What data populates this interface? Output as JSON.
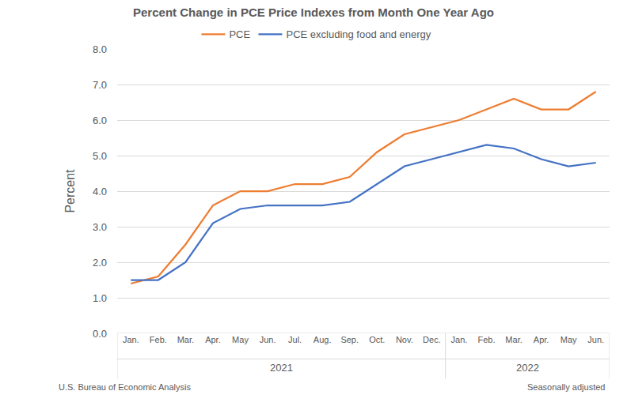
{
  "chart_data": {
    "type": "line",
    "title": "Percent Change in PCE Price Indexes from Month One Year Ago",
    "y_label": "Percent",
    "categories": [
      {
        "month": "Jan.",
        "year": "2021"
      },
      {
        "month": "Feb.",
        "year": "2021"
      },
      {
        "month": "Mar.",
        "year": "2021"
      },
      {
        "month": "Apr.",
        "year": "2021"
      },
      {
        "month": "May",
        "year": "2021"
      },
      {
        "month": "Jun.",
        "year": "2021"
      },
      {
        "month": "Jul.",
        "year": "2021"
      },
      {
        "month": "Aug.",
        "year": "2021"
      },
      {
        "month": "Sep.",
        "year": "2021"
      },
      {
        "month": "Oct.",
        "year": "2021"
      },
      {
        "month": "Nov.",
        "year": "2021"
      },
      {
        "month": "Dec.",
        "year": "2021"
      },
      {
        "month": "Jan.",
        "year": "2022"
      },
      {
        "month": "Feb.",
        "year": "2022"
      },
      {
        "month": "Mar.",
        "year": "2022"
      },
      {
        "month": "Apr.",
        "year": "2022"
      },
      {
        "month": "May",
        "year": "2022"
      },
      {
        "month": "Jun.",
        "year": "2022"
      }
    ],
    "series": [
      {
        "name": "PCE",
        "color": "#ED7D31",
        "values": [
          1.4,
          1.6,
          2.5,
          3.6,
          4.0,
          4.0,
          4.2,
          4.2,
          4.4,
          5.1,
          5.6,
          5.8,
          6.0,
          6.3,
          6.6,
          6.3,
          6.3,
          6.8
        ]
      },
      {
        "name": "PCE excluding food and energy",
        "color": "#4472C4",
        "values": [
          1.5,
          1.5,
          2.0,
          3.1,
          3.5,
          3.6,
          3.6,
          3.6,
          3.7,
          4.2,
          4.7,
          4.9,
          5.1,
          5.3,
          5.2,
          4.9,
          4.7,
          4.8
        ]
      }
    ],
    "ylim": [
      0,
      8
    ],
    "yticks": [
      {
        "value": 0,
        "label": "0.0"
      },
      {
        "value": 1,
        "label": "1.0"
      },
      {
        "value": 2,
        "label": "2.0"
      },
      {
        "value": 3,
        "label": "3.0"
      },
      {
        "value": 4,
        "label": "4.0"
      },
      {
        "value": 5,
        "label": "5.0"
      },
      {
        "value": 6,
        "label": "6.0"
      },
      {
        "value": 7,
        "label": "7.0"
      },
      {
        "value": 8,
        "label": "8.0"
      }
    ],
    "grid": true,
    "legend": "top",
    "source": "U.S. Bureau of Economic Analysis",
    "note": "Seasonally adjusted"
  }
}
